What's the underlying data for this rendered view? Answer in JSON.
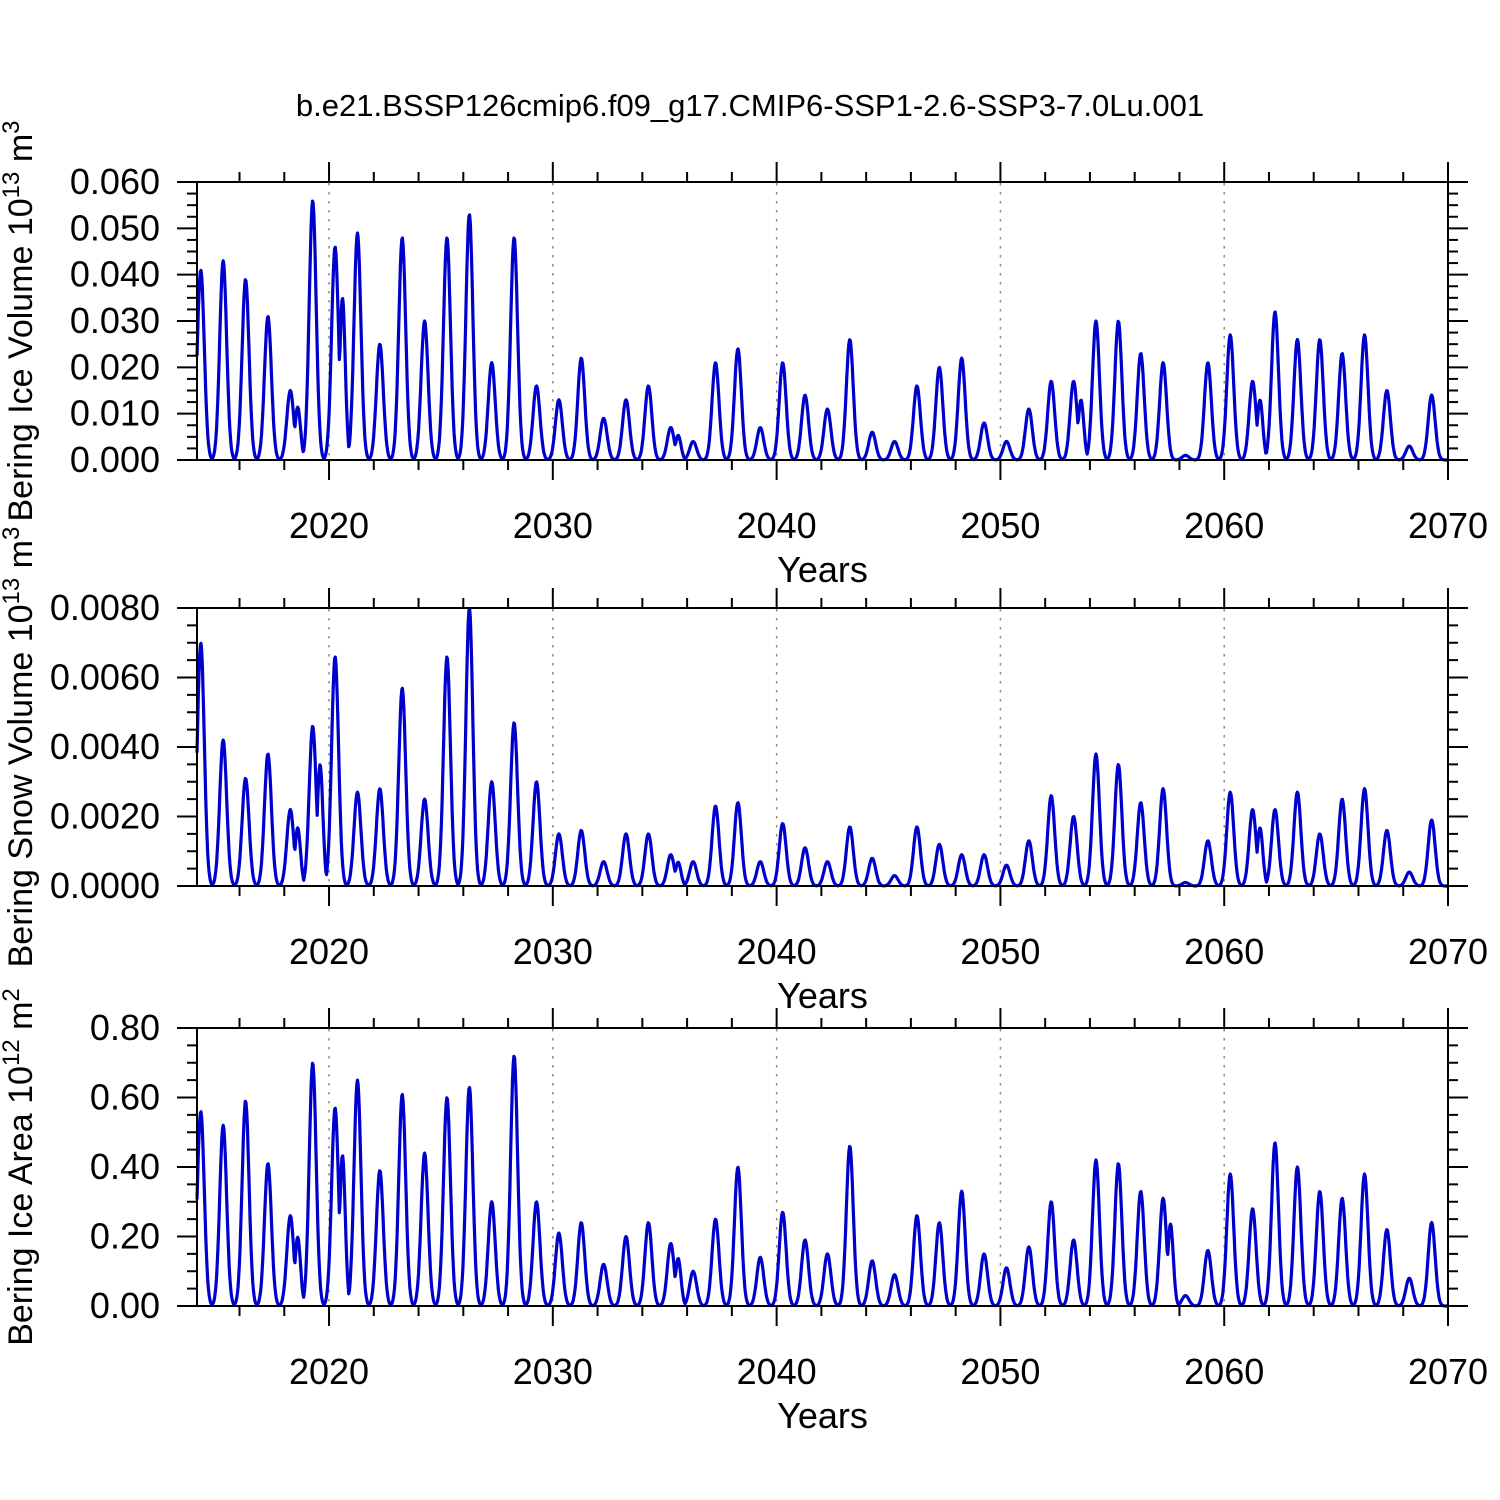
{
  "title": "b.e21.BSSP126cmip6.f09_g17.CMIP6-SSP1-2.6-SSP3-7.0Lu.001",
  "colors": {
    "line": "#0000CD",
    "grid": "#8a8a8a",
    "frame": "#000000",
    "text": "#000000",
    "background": "#ffffff"
  },
  "chart_data": {
    "type": "line",
    "x_label": "Years",
    "x": [
      2014,
      2015,
      2016,
      2017,
      2018,
      2019,
      2020,
      2021,
      2022,
      2023,
      2024,
      2025,
      2026,
      2027,
      2028,
      2029,
      2030,
      2031,
      2032,
      2033,
      2034,
      2035,
      2036,
      2037,
      2038,
      2039,
      2040,
      2041,
      2042,
      2043,
      2044,
      2045,
      2046,
      2047,
      2048,
      2049,
      2050,
      2051,
      2052,
      2053,
      2054,
      2055,
      2056,
      2057,
      2058,
      2059,
      2060,
      2061,
      2062,
      2063,
      2064,
      2065,
      2066,
      2067,
      2068,
      2069
    ],
    "x_range_displayed": [
      2014.1,
      2070
    ],
    "x_major_ticks": [
      2020,
      2030,
      2040,
      2050,
      2060,
      2070
    ],
    "x_minor_tick_step": 2,
    "grid_x": [
      2020,
      2030,
      2040,
      2050,
      2060
    ],
    "seasonal_shape": "each year the curve rises from ~0 to its annual winter peak and falls back to ~0",
    "series": [
      {
        "name": "Bering Ice Volume",
        "ylabel_plain": "Bering Ice Volume 10^13 m^3",
        "ylabel_parts": [
          {
            "text": "Bering Ice Volume 10"
          },
          {
            "sup": "13"
          },
          {
            "text": " m"
          },
          {
            "sup": "3"
          }
        ],
        "annual_peaks": [
          0.041,
          0.043,
          0.039,
          0.031,
          0.015,
          0.056,
          0.046,
          0.049,
          0.025,
          0.048,
          0.03,
          0.048,
          0.053,
          0.021,
          0.048,
          0.016,
          0.013,
          0.022,
          0.009,
          0.013,
          0.016,
          0.007,
          0.004,
          0.021,
          0.024,
          0.007,
          0.021,
          0.014,
          0.011,
          0.026,
          0.006,
          0.004,
          0.016,
          0.02,
          0.022,
          0.008,
          0.004,
          0.011,
          0.017,
          0.017,
          0.03,
          0.03,
          0.023,
          0.021,
          0.001,
          0.021,
          0.027,
          0.017,
          0.032,
          0.026,
          0.026,
          0.023,
          0.027,
          0.015,
          0.003,
          0.014
        ],
        "ylim": [
          0,
          0.06
        ],
        "ytick_major": 0.01,
        "ytick_minor": 0.0025,
        "ytick_decimals": 3,
        "double_peak_years": [
          2018,
          2020,
          2035,
          2053,
          2061
        ]
      },
      {
        "name": "Bering Snow Volume",
        "ylabel_plain": "Bering Snow Volume 10^13 m^3",
        "ylabel_parts": [
          {
            "text": "Bering Snow Volume 10"
          },
          {
            "sup": "13"
          },
          {
            "text": " m"
          },
          {
            "sup": "3"
          }
        ],
        "annual_peaks": [
          0.007,
          0.0042,
          0.0031,
          0.0038,
          0.0022,
          0.0046,
          0.0066,
          0.0027,
          0.0028,
          0.0057,
          0.0025,
          0.0066,
          0.008,
          0.003,
          0.0047,
          0.003,
          0.0015,
          0.0016,
          0.0007,
          0.0015,
          0.0015,
          0.0009,
          0.0007,
          0.0023,
          0.0024,
          0.0007,
          0.0018,
          0.0011,
          0.0007,
          0.0017,
          0.0008,
          0.0003,
          0.0017,
          0.0012,
          0.0009,
          0.0009,
          0.0006,
          0.0013,
          0.0026,
          0.002,
          0.0038,
          0.0035,
          0.0024,
          0.0028,
          0.0001,
          0.0013,
          0.0027,
          0.0022,
          0.0022,
          0.0027,
          0.0015,
          0.0025,
          0.0028,
          0.0016,
          0.0004,
          0.0019
        ],
        "ylim": [
          0,
          0.008
        ],
        "ytick_major": 0.002,
        "ytick_minor": 0.0005,
        "ytick_decimals": 4,
        "double_peak_years": [
          2018,
          2019,
          2035,
          2061
        ]
      },
      {
        "name": "Bering Ice Area",
        "ylabel_plain": "Bering Ice Area 10^12 m^2",
        "ylabel_parts": [
          {
            "text": "Bering Ice Area 10"
          },
          {
            "sup": "12"
          },
          {
            "text": " m"
          },
          {
            "sup": "2"
          }
        ],
        "annual_peaks": [
          0.56,
          0.52,
          0.59,
          0.41,
          0.26,
          0.7,
          0.57,
          0.65,
          0.39,
          0.61,
          0.44,
          0.6,
          0.63,
          0.3,
          0.72,
          0.3,
          0.21,
          0.24,
          0.12,
          0.2,
          0.24,
          0.18,
          0.1,
          0.25,
          0.4,
          0.14,
          0.27,
          0.19,
          0.15,
          0.46,
          0.13,
          0.09,
          0.26,
          0.24,
          0.33,
          0.15,
          0.11,
          0.17,
          0.3,
          0.19,
          0.42,
          0.41,
          0.33,
          0.31,
          0.03,
          0.16,
          0.38,
          0.28,
          0.47,
          0.4,
          0.33,
          0.31,
          0.38,
          0.22,
          0.08,
          0.24
        ],
        "ylim": [
          0,
          0.8
        ],
        "ytick_major": 0.2,
        "ytick_minor": 0.05,
        "ytick_decimals": 2,
        "double_peak_years": [
          2018,
          2020,
          2035,
          2057
        ]
      }
    ]
  }
}
